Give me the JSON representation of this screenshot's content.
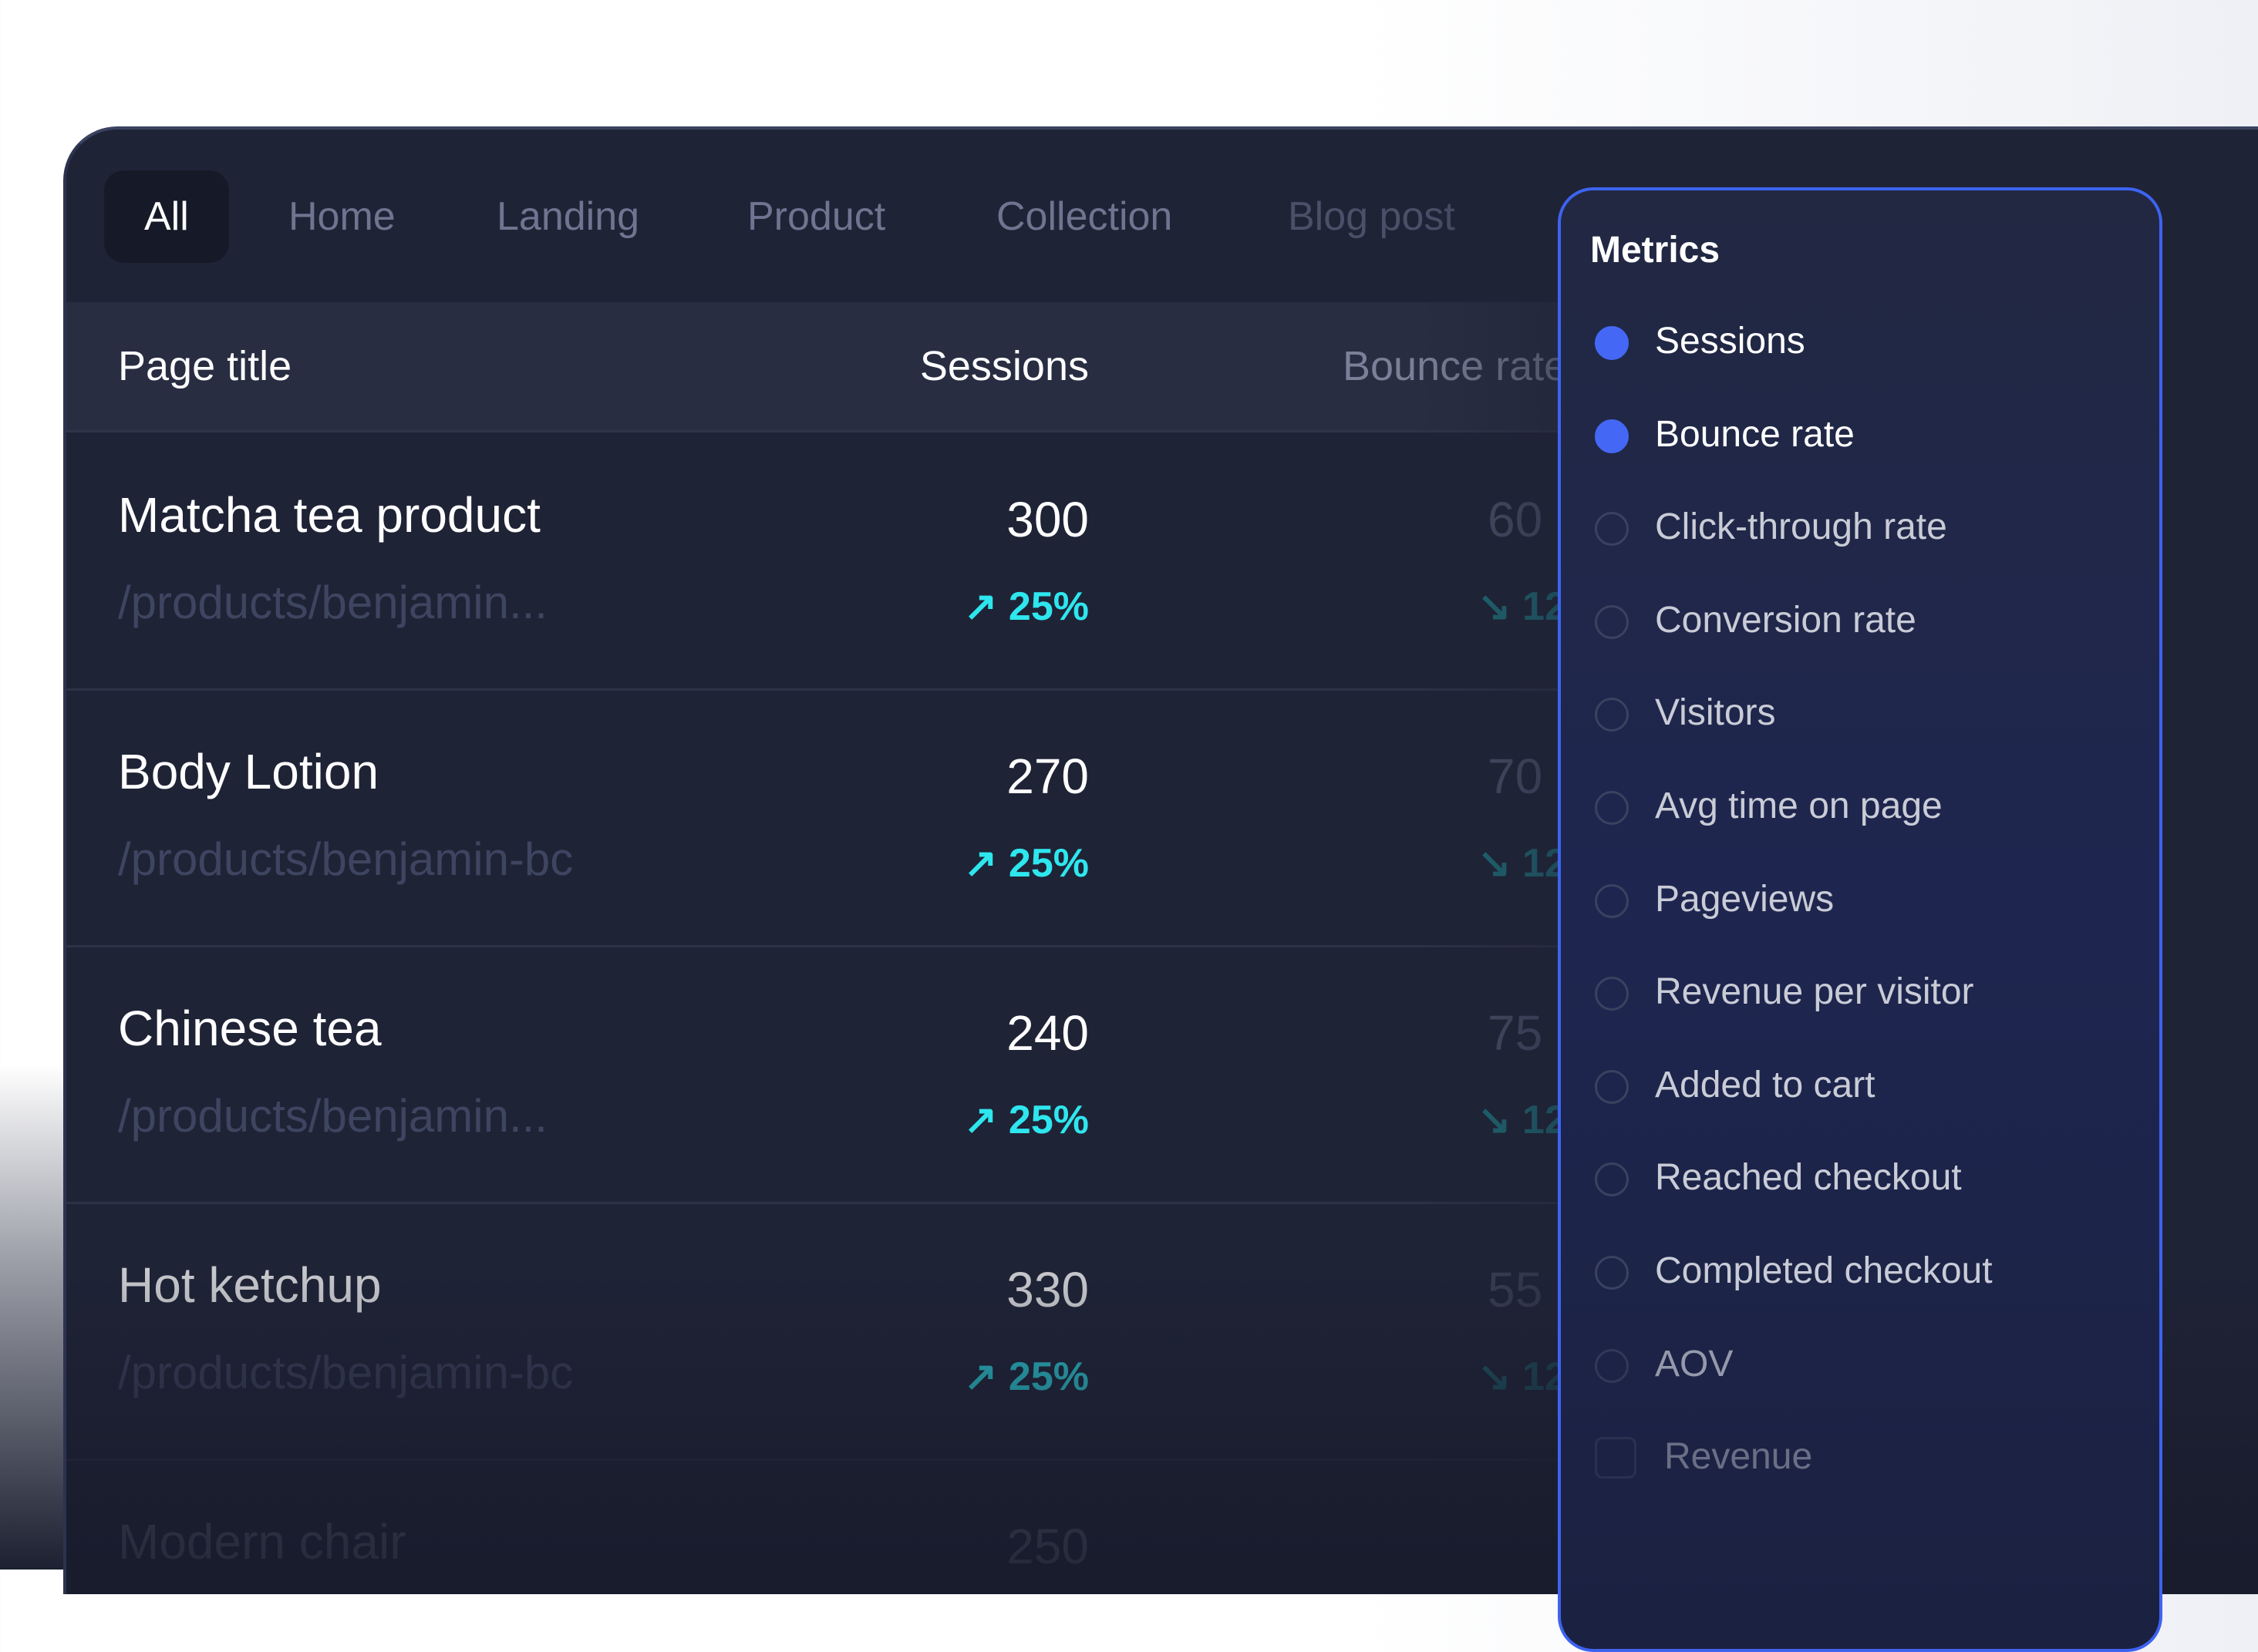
{
  "tabs": [
    {
      "label": "All",
      "active": true
    },
    {
      "label": "Home"
    },
    {
      "label": "Landing"
    },
    {
      "label": "Product"
    },
    {
      "label": "Collection"
    },
    {
      "label": "Blog post"
    }
  ],
  "table": {
    "headers": {
      "page_title": "Page title",
      "sessions": "Sessions",
      "bounce_rate": "Bounce rate"
    },
    "rows": [
      {
        "title": "Matcha tea product",
        "path": "/products/benjamin...",
        "sessions": "300",
        "sessions_delta": "25%",
        "bounce": "60",
        "bounce_delta": "12"
      },
      {
        "title": "Body Lotion",
        "path": "/products/benjamin-bc",
        "sessions": "270",
        "sessions_delta": "25%",
        "bounce": "70",
        "bounce_delta": "12"
      },
      {
        "title": "Chinese tea",
        "path": "/products/benjamin...",
        "sessions": "240",
        "sessions_delta": "25%",
        "bounce": "75",
        "bounce_delta": "12"
      },
      {
        "title": "Hot ketchup",
        "path": "/products/benjamin-bc",
        "sessions": "330",
        "sessions_delta": "25%",
        "bounce": "55",
        "bounce_delta": "12"
      },
      {
        "title": "Modern chair",
        "sessions": "250"
      }
    ]
  },
  "metrics": {
    "title": "Metrics",
    "items": [
      {
        "label": "Sessions",
        "selected": true
      },
      {
        "label": "Bounce rate",
        "selected": true
      },
      {
        "label": "Click-through rate",
        "selected": false
      },
      {
        "label": "Conversion rate",
        "selected": false
      },
      {
        "label": "Visitors",
        "selected": false
      },
      {
        "label": "Avg time on page",
        "selected": false
      },
      {
        "label": "Pageviews",
        "selected": false
      },
      {
        "label": "Revenue per visitor",
        "selected": false
      },
      {
        "label": "Added to cart",
        "selected": false
      },
      {
        "label": "Reached checkout",
        "selected": false
      },
      {
        "label": "Completed checkout",
        "selected": false
      },
      {
        "label": "AOV",
        "selected": false
      },
      {
        "label": "Revenue",
        "selected": false
      }
    ]
  },
  "icons": {
    "up": "arrow-up-right-icon",
    "down": "arrow-down-right-icon"
  },
  "colors": {
    "accent": "#4468f5",
    "positive": "#2ee6ee",
    "background": "#1f2336"
  }
}
